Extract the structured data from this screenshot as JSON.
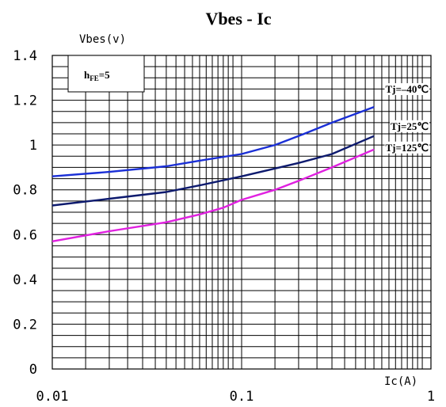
{
  "chart_data": {
    "type": "line",
    "title": "Vbes - Ic",
    "ylabel": "Vbes(v)",
    "xlabel": "Ic(A)",
    "x_scale": "log",
    "xlim": [
      0.01,
      1
    ],
    "ylim": [
      0,
      1.4
    ],
    "grid": true,
    "x_ticks": [
      "0.01",
      "0.1",
      "1"
    ],
    "y_ticks": [
      "0",
      "0.2",
      "0.4",
      "0.6",
      "0.8",
      "1",
      "1.2",
      "1.4"
    ],
    "annotation": {
      "main": "h",
      "sub": "FE",
      "value": "=5"
    },
    "series": [
      {
        "name": "Tj=–40℃",
        "color": "#1a2fd6",
        "points": [
          [
            0.01,
            0.86
          ],
          [
            0.02,
            0.88
          ],
          [
            0.04,
            0.905
          ],
          [
            0.06,
            0.93
          ],
          [
            0.1,
            0.96
          ],
          [
            0.15,
            1.0
          ],
          [
            0.2,
            1.04
          ],
          [
            0.3,
            1.1
          ],
          [
            0.5,
            1.17
          ]
        ]
      },
      {
        "name": "Tj=25℃",
        "color": "#0d1a6e",
        "points": [
          [
            0.01,
            0.73
          ],
          [
            0.02,
            0.76
          ],
          [
            0.04,
            0.79
          ],
          [
            0.06,
            0.82
          ],
          [
            0.1,
            0.86
          ],
          [
            0.15,
            0.895
          ],
          [
            0.2,
            0.92
          ],
          [
            0.3,
            0.96
          ],
          [
            0.5,
            1.04
          ]
        ]
      },
      {
        "name": "Tj=125℃",
        "color": "#e020e0",
        "points": [
          [
            0.01,
            0.57
          ],
          [
            0.02,
            0.615
          ],
          [
            0.04,
            0.655
          ],
          [
            0.06,
            0.69
          ],
          [
            0.08,
            0.72
          ],
          [
            0.1,
            0.755
          ],
          [
            0.15,
            0.8
          ],
          [
            0.2,
            0.84
          ],
          [
            0.3,
            0.9
          ],
          [
            0.5,
            0.98
          ]
        ]
      }
    ]
  }
}
